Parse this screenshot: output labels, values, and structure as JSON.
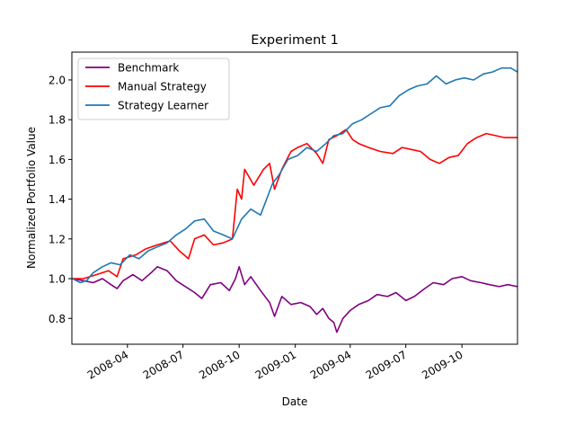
{
  "chart_data": {
    "type": "line",
    "title": "Experiment 1",
    "xlabel": "Date",
    "ylabel": "Normalized Portfolio Value",
    "xlim": [
      "2008-01-01",
      "2009-12-31"
    ],
    "ylim": [
      0.67,
      2.14
    ],
    "x_ticks": [
      {
        "date": "2008-04-01",
        "label": "2008-04"
      },
      {
        "date": "2008-07-01",
        "label": "2008-07"
      },
      {
        "date": "2008-10-01",
        "label": "2008-10"
      },
      {
        "date": "2009-01-01",
        "label": "2009-01"
      },
      {
        "date": "2009-04-01",
        "label": "2009-04"
      },
      {
        "date": "2009-07-01",
        "label": "2009-07"
      },
      {
        "date": "2009-10-01",
        "label": "2009-10"
      }
    ],
    "y_ticks": [
      {
        "value": 0.8,
        "label": "0.8"
      },
      {
        "value": 1.0,
        "label": "1.0"
      },
      {
        "value": 1.2,
        "label": "1.2"
      },
      {
        "value": 1.4,
        "label": "1.4"
      },
      {
        "value": 1.6,
        "label": "1.6"
      },
      {
        "value": 1.8,
        "label": "1.8"
      },
      {
        "value": 2.0,
        "label": "2.0"
      }
    ],
    "grid": false,
    "legend_position": "top-left",
    "series": [
      {
        "name": "Benchmark",
        "color": "#800080",
        "points": [
          [
            "2008-01-02",
            1.0
          ],
          [
            "2008-01-20",
            0.99
          ],
          [
            "2008-02-05",
            0.98
          ],
          [
            "2008-02-20",
            1.0
          ],
          [
            "2008-03-05",
            0.97
          ],
          [
            "2008-03-15",
            0.95
          ],
          [
            "2008-03-25",
            0.99
          ],
          [
            "2008-04-10",
            1.02
          ],
          [
            "2008-04-25",
            0.99
          ],
          [
            "2008-05-10",
            1.03
          ],
          [
            "2008-05-20",
            1.06
          ],
          [
            "2008-06-05",
            1.04
          ],
          [
            "2008-06-20",
            0.99
          ],
          [
            "2008-07-05",
            0.96
          ],
          [
            "2008-07-20",
            0.93
          ],
          [
            "2008-08-01",
            0.9
          ],
          [
            "2008-08-15",
            0.97
          ],
          [
            "2008-09-01",
            0.98
          ],
          [
            "2008-09-15",
            0.94
          ],
          [
            "2008-09-25",
            1.0
          ],
          [
            "2008-10-01",
            1.06
          ],
          [
            "2008-10-10",
            0.97
          ],
          [
            "2008-10-20",
            1.01
          ],
          [
            "2008-11-05",
            0.94
          ],
          [
            "2008-11-20",
            0.88
          ],
          [
            "2008-11-28",
            0.81
          ],
          [
            "2008-12-10",
            0.91
          ],
          [
            "2008-12-25",
            0.87
          ],
          [
            "2009-01-10",
            0.88
          ],
          [
            "2009-01-25",
            0.86
          ],
          [
            "2009-02-05",
            0.82
          ],
          [
            "2009-02-15",
            0.85
          ],
          [
            "2009-02-25",
            0.8
          ],
          [
            "2009-03-05",
            0.78
          ],
          [
            "2009-03-10",
            0.73
          ],
          [
            "2009-03-20",
            0.8
          ],
          [
            "2009-04-01",
            0.84
          ],
          [
            "2009-04-15",
            0.87
          ],
          [
            "2009-05-01",
            0.89
          ],
          [
            "2009-05-15",
            0.92
          ],
          [
            "2009-06-01",
            0.91
          ],
          [
            "2009-06-15",
            0.93
          ],
          [
            "2009-07-01",
            0.89
          ],
          [
            "2009-07-15",
            0.91
          ],
          [
            "2009-08-01",
            0.95
          ],
          [
            "2009-08-15",
            0.98
          ],
          [
            "2009-09-01",
            0.97
          ],
          [
            "2009-09-15",
            1.0
          ],
          [
            "2009-10-01",
            1.01
          ],
          [
            "2009-10-15",
            0.99
          ],
          [
            "2009-11-01",
            0.98
          ],
          [
            "2009-11-15",
            0.97
          ],
          [
            "2009-12-01",
            0.96
          ],
          [
            "2009-12-15",
            0.97
          ],
          [
            "2009-12-31",
            0.96
          ]
        ]
      },
      {
        "name": "Manual Strategy",
        "color": "#ff0000",
        "points": [
          [
            "2008-01-02",
            1.0
          ],
          [
            "2008-01-20",
            1.0
          ],
          [
            "2008-02-10",
            1.02
          ],
          [
            "2008-03-01",
            1.04
          ],
          [
            "2008-03-15",
            1.01
          ],
          [
            "2008-03-25",
            1.1
          ],
          [
            "2008-04-15",
            1.12
          ],
          [
            "2008-05-01",
            1.15
          ],
          [
            "2008-05-20",
            1.17
          ],
          [
            "2008-06-10",
            1.19
          ],
          [
            "2008-06-25",
            1.14
          ],
          [
            "2008-07-10",
            1.1
          ],
          [
            "2008-07-20",
            1.2
          ],
          [
            "2008-08-05",
            1.22
          ],
          [
            "2008-08-20",
            1.17
          ],
          [
            "2008-09-05",
            1.18
          ],
          [
            "2008-09-20",
            1.2
          ],
          [
            "2008-09-28",
            1.45
          ],
          [
            "2008-10-05",
            1.4
          ],
          [
            "2008-10-10",
            1.55
          ],
          [
            "2008-10-25",
            1.47
          ],
          [
            "2008-11-10",
            1.55
          ],
          [
            "2008-11-20",
            1.58
          ],
          [
            "2008-11-28",
            1.45
          ],
          [
            "2008-12-10",
            1.55
          ],
          [
            "2008-12-25",
            1.64
          ],
          [
            "2009-01-05",
            1.66
          ],
          [
            "2009-01-20",
            1.68
          ],
          [
            "2009-02-05",
            1.63
          ],
          [
            "2009-02-15",
            1.58
          ],
          [
            "2009-02-25",
            1.7
          ],
          [
            "2009-03-10",
            1.72
          ],
          [
            "2009-03-25",
            1.75
          ],
          [
            "2009-04-05",
            1.7
          ],
          [
            "2009-04-15",
            1.68
          ],
          [
            "2009-05-01",
            1.66
          ],
          [
            "2009-05-20",
            1.64
          ],
          [
            "2009-06-10",
            1.63
          ],
          [
            "2009-06-25",
            1.66
          ],
          [
            "2009-07-10",
            1.65
          ],
          [
            "2009-07-25",
            1.64
          ],
          [
            "2009-08-10",
            1.6
          ],
          [
            "2009-08-25",
            1.58
          ],
          [
            "2009-09-10",
            1.61
          ],
          [
            "2009-09-25",
            1.62
          ],
          [
            "2009-10-10",
            1.68
          ],
          [
            "2009-10-25",
            1.71
          ],
          [
            "2009-11-10",
            1.73
          ],
          [
            "2009-11-25",
            1.72
          ],
          [
            "2009-12-10",
            1.71
          ],
          [
            "2009-12-31",
            1.71
          ]
        ]
      },
      {
        "name": "Strategy Learner",
        "color": "#1f77b4",
        "points": [
          [
            "2008-01-02",
            1.0
          ],
          [
            "2008-01-15",
            0.98
          ],
          [
            "2008-01-25",
            0.99
          ],
          [
            "2008-02-05",
            1.03
          ],
          [
            "2008-02-20",
            1.06
          ],
          [
            "2008-03-05",
            1.08
          ],
          [
            "2008-03-20",
            1.07
          ],
          [
            "2008-04-05",
            1.12
          ],
          [
            "2008-04-20",
            1.1
          ],
          [
            "2008-05-05",
            1.14
          ],
          [
            "2008-05-20",
            1.16
          ],
          [
            "2008-06-05",
            1.18
          ],
          [
            "2008-06-20",
            1.22
          ],
          [
            "2008-07-05",
            1.25
          ],
          [
            "2008-07-20",
            1.29
          ],
          [
            "2008-08-05",
            1.3
          ],
          [
            "2008-08-20",
            1.24
          ],
          [
            "2008-09-05",
            1.22
          ],
          [
            "2008-09-20",
            1.2
          ],
          [
            "2008-10-05",
            1.3
          ],
          [
            "2008-10-20",
            1.35
          ],
          [
            "2008-11-05",
            1.32
          ],
          [
            "2008-11-25",
            1.48
          ],
          [
            "2008-12-05",
            1.52
          ],
          [
            "2008-12-20",
            1.6
          ],
          [
            "2009-01-05",
            1.62
          ],
          [
            "2009-01-20",
            1.66
          ],
          [
            "2009-02-05",
            1.64
          ],
          [
            "2009-02-20",
            1.68
          ],
          [
            "2009-03-05",
            1.72
          ],
          [
            "2009-03-20",
            1.73
          ],
          [
            "2009-04-05",
            1.78
          ],
          [
            "2009-04-20",
            1.8
          ],
          [
            "2009-05-05",
            1.83
          ],
          [
            "2009-05-20",
            1.86
          ],
          [
            "2009-06-05",
            1.87
          ],
          [
            "2009-06-20",
            1.92
          ],
          [
            "2009-07-05",
            1.95
          ],
          [
            "2009-07-20",
            1.97
          ],
          [
            "2009-08-05",
            1.98
          ],
          [
            "2009-08-20",
            2.02
          ],
          [
            "2009-09-05",
            1.98
          ],
          [
            "2009-09-20",
            2.0
          ],
          [
            "2009-10-05",
            2.01
          ],
          [
            "2009-10-20",
            2.0
          ],
          [
            "2009-11-05",
            2.03
          ],
          [
            "2009-11-20",
            2.04
          ],
          [
            "2009-12-05",
            2.06
          ],
          [
            "2009-12-20",
            2.06
          ],
          [
            "2009-12-31",
            2.04
          ]
        ]
      }
    ]
  }
}
